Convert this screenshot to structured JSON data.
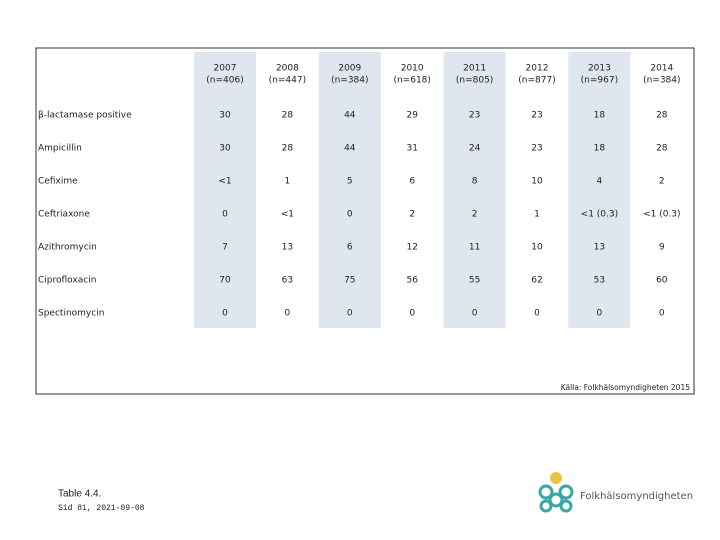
{
  "table": {
    "columns": [
      {
        "year": "2007",
        "n": "(n=406)"
      },
      {
        "year": "2008",
        "n": "(n=447)"
      },
      {
        "year": "2009",
        "n": "(n=384)"
      },
      {
        "year": "2010",
        "n": "(n=618)"
      },
      {
        "year": "2011",
        "n": "(n=805)"
      },
      {
        "year": "2012",
        "n": "(n=877)"
      },
      {
        "year": "2013",
        "n": "(n=967)"
      },
      {
        "year": "2014",
        "n": "(n=384)"
      }
    ],
    "rows": [
      [
        "β-lactamase positive",
        30,
        28,
        44,
        29,
        23,
        23,
        18,
        28
      ],
      [
        "Ampicillin",
        30,
        28,
        44,
        31,
        24,
        23,
        18,
        28
      ],
      [
        "Cefixime",
        "<1",
        1,
        5,
        6,
        8,
        10,
        4,
        2
      ],
      [
        "Ceftriaxone",
        0,
        "<1",
        0,
        2,
        2,
        1,
        "<1 (0.3)",
        "<1 (0.3)"
      ],
      [
        "Azithromycin",
        7,
        13,
        6,
        12,
        11,
        10,
        13,
        9
      ],
      [
        "Ciprofloxacin",
        70,
        63,
        75,
        56,
        55,
        62,
        53,
        60
      ],
      [
        "Spectinomycin",
        0,
        0,
        0,
        0,
        0,
        0,
        0,
        0
      ]
    ],
    "source": "Källa: Folkhälsomyndigheten 2015"
  },
  "footer": {
    "title": "Table 4.4.",
    "subtitle": "Sid 81, 2021-09-08",
    "logo": "Folkhälsomyndigheten"
  }
}
